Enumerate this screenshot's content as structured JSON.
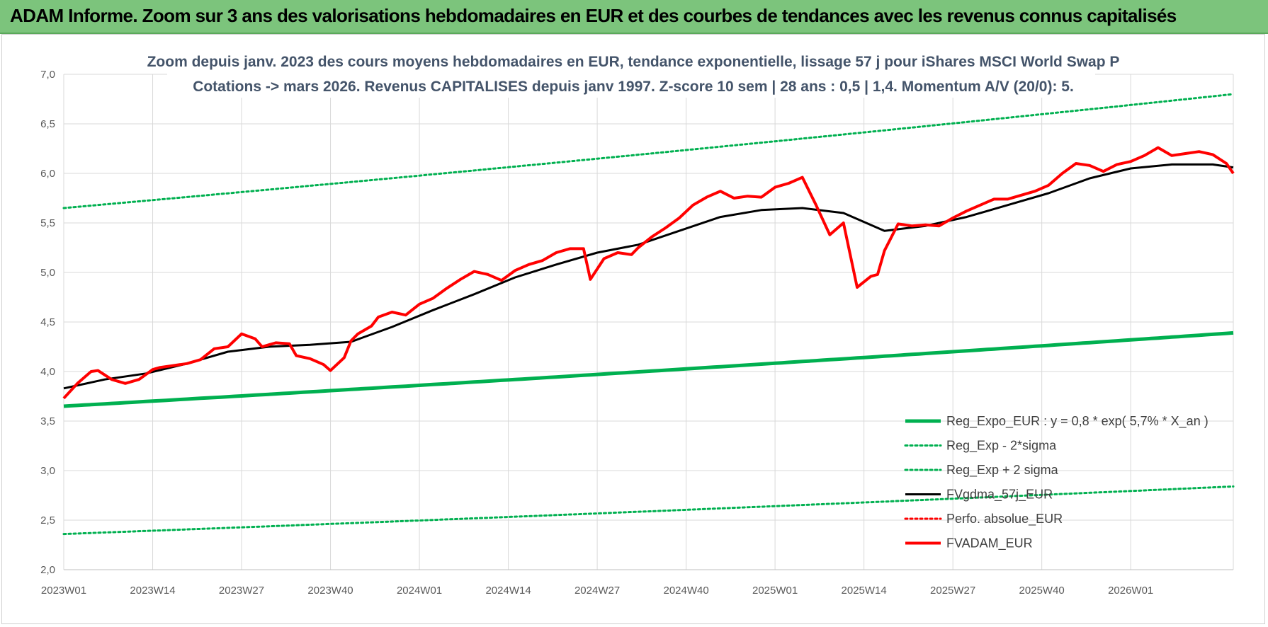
{
  "banner": {
    "title": "ADAM Informe. Zoom sur 3 ans des valorisations hebdomadaires en EUR et des courbes de tendances avec les revenus connus capitalisés"
  },
  "colors": {
    "banner_bg": "#7cc47c",
    "reg_green": "#00b050",
    "red": "#ff0000",
    "black": "#000000",
    "title": "#44546a",
    "grid": "#d9d9d9"
  },
  "chart_data": {
    "type": "line",
    "title": "Zoom depuis janv. 2023 des cours moyens hebdomadaires en EUR, tendance exponentielle, lissage 57 j pour iShares MSCI World Swap P",
    "subtitle": "Cotations -> mars 2026. Revenus CAPITALISES depuis janv 1997.  Z-score 10 sem | 28 ans : 0,5 | 1,4.  Momentum A/V (20/0): 5.",
    "xlabel": "",
    "ylabel": "",
    "ylim": [
      2.0,
      7.0
    ],
    "yticks": [
      "2,0",
      "2,5",
      "3,0",
      "3,5",
      "4,0",
      "4,5",
      "5,0",
      "5,5",
      "6,0",
      "6,5",
      "7,0"
    ],
    "xticks": [
      "2023W01",
      "2023W14",
      "2023W27",
      "2023W40",
      "2024W01",
      "2024W14",
      "2024W27",
      "2024W40",
      "2025W01",
      "2025W14",
      "2025W27",
      "2025W40",
      "2026W01"
    ],
    "x_range_weeks": [
      0,
      171
    ],
    "grid": true,
    "legend_position": "bottom-right",
    "series": [
      {
        "name": "Reg_Expo_EUR : y = 0,8 * exp( 5,7% *  X_an )",
        "style": "solid-thick",
        "color": "#00b050",
        "x": [
          0,
          171
        ],
        "values": [
          3.65,
          4.39
        ],
        "curve": "exp"
      },
      {
        "name": "Reg_Exp - 2*sigma",
        "style": "dotted",
        "color": "#00b050",
        "x": [
          0,
          171
        ],
        "values": [
          2.36,
          2.84
        ],
        "curve": "exp"
      },
      {
        "name": "Reg_Exp + 2 sigma",
        "style": "dotted",
        "color": "#00b050",
        "x": [
          0,
          171
        ],
        "values": [
          5.65,
          6.8
        ],
        "curve": "exp"
      },
      {
        "name": "FVgdma_57j_EUR",
        "style": "solid",
        "color": "#000000",
        "x": [
          0,
          6,
          12,
          18,
          24,
          30,
          36,
          42,
          48,
          54,
          60,
          66,
          72,
          78,
          84,
          90,
          96,
          102,
          108,
          114,
          120,
          126,
          132,
          138,
          144,
          150,
          156,
          162,
          168,
          171
        ],
        "values": [
          3.83,
          3.92,
          3.98,
          4.08,
          4.2,
          4.25,
          4.27,
          4.3,
          4.45,
          4.62,
          4.78,
          4.95,
          5.08,
          5.2,
          5.28,
          5.42,
          5.56,
          5.63,
          5.65,
          5.6,
          5.42,
          5.47,
          5.56,
          5.68,
          5.8,
          5.95,
          6.05,
          6.09,
          6.09,
          6.06
        ]
      },
      {
        "name": "Perfo. absolue_EUR",
        "style": "dotted",
        "color": "#ff0000",
        "x": [],
        "values": []
      },
      {
        "name": "FVADAM_EUR",
        "style": "solid-thick",
        "color": "#ff0000",
        "x": [
          0,
          2,
          4,
          5,
          7,
          9,
          11,
          13,
          14,
          16,
          18,
          20,
          22,
          24,
          26,
          28,
          29,
          31,
          33,
          34,
          36,
          38,
          39,
          41,
          42,
          43,
          45,
          46,
          48,
          50,
          52,
          54,
          56,
          58,
          60,
          62,
          64,
          66,
          68,
          70,
          72,
          74,
          76,
          77,
          79,
          81,
          83,
          84,
          86,
          88,
          90,
          92,
          94,
          96,
          98,
          100,
          102,
          104,
          106,
          108,
          110,
          112,
          114,
          116,
          118,
          119,
          120,
          122,
          124,
          126,
          128,
          130,
          132,
          134,
          136,
          138,
          140,
          142,
          144,
          146,
          148,
          150,
          152,
          154,
          156,
          158,
          160,
          162,
          164,
          166,
          168,
          170,
          171
        ],
        "values": [
          3.73,
          3.88,
          4.0,
          4.01,
          3.92,
          3.88,
          3.92,
          4.02,
          4.04,
          4.06,
          4.08,
          4.12,
          4.23,
          4.25,
          4.38,
          4.33,
          4.25,
          4.29,
          4.28,
          4.16,
          4.13,
          4.07,
          4.01,
          4.14,
          4.31,
          4.38,
          4.46,
          4.55,
          4.6,
          4.57,
          4.68,
          4.74,
          4.84,
          4.93,
          5.01,
          4.98,
          4.92,
          5.02,
          5.08,
          5.12,
          5.2,
          5.24,
          5.24,
          4.93,
          5.14,
          5.2,
          5.18,
          5.25,
          5.36,
          5.45,
          5.55,
          5.68,
          5.76,
          5.82,
          5.75,
          5.77,
          5.76,
          5.86,
          5.9,
          5.96,
          5.68,
          5.38,
          5.5,
          4.85,
          4.96,
          4.98,
          5.22,
          5.49,
          5.47,
          5.48,
          5.47,
          5.55,
          5.62,
          5.68,
          5.74,
          5.74,
          5.78,
          5.82,
          5.88,
          6.0,
          6.1,
          6.08,
          6.02,
          6.09,
          6.12,
          6.18,
          6.26,
          6.18,
          6.2,
          6.22,
          6.19,
          6.1,
          6.0
        ]
      }
    ]
  }
}
